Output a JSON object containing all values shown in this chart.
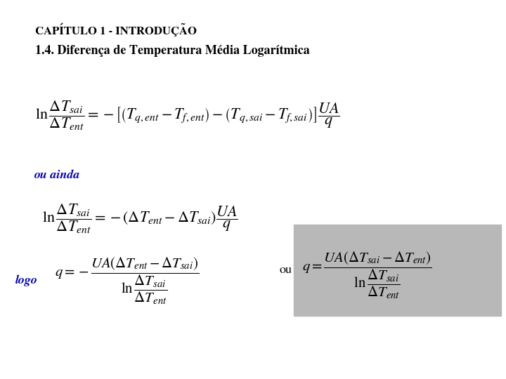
{
  "title": "CAPÍTULO 1 - INTRODUÇÃO",
  "subtitle": "1.4. Diferença de Temperatura Média Logarítmica",
  "bg_color": "#ffffff",
  "title_color": "#000000",
  "subtitle_color": "#000000",
  "blue_color": "#0000bb",
  "gray_box_color": "#b8b8b8",
  "eq1": "$\\ln \\dfrac{\\Delta T_{sai}}{\\Delta T_{ent}} = -\\left[\\left(T_{q,ent} - T_{f,ent}\\right) - \\left(T_{q,sai} - T_{f,sai}\\right)\\right]\\dfrac{UA}{q}$",
  "ou_ainda": "ou ainda",
  "eq2": "$\\ln \\dfrac{\\Delta T_{sai}}{\\Delta T_{ent}} = -\\left(\\Delta T_{ent} - \\Delta T_{sai}\\right)\\dfrac{UA}{q}$",
  "logo_label": "logo",
  "eq3_left": "$q = -\\dfrac{UA\\left(\\Delta T_{ent} - \\Delta T_{sai}\\right)}{\\ln \\dfrac{\\Delta T_{sai}}{\\Delta T_{ent}}}$",
  "ou_label": "ou",
  "eq3_right": "$q = \\dfrac{UA\\left(\\Delta T_{sai} - \\Delta T_{ent}\\right)}{\\ln \\dfrac{\\Delta T_{sai}}{\\Delta T_{ent}}}$"
}
